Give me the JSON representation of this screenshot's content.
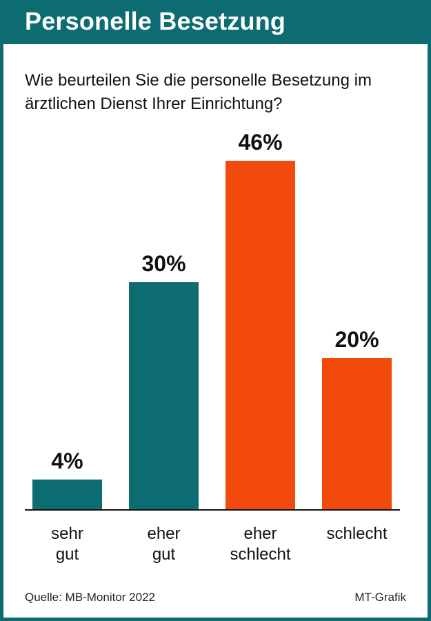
{
  "header": {
    "title": "Personelle Besetzung"
  },
  "question": "Wie beurteilen Sie die personelle Besetzung im ärztlichen Dienst Ihrer Einrichtung?",
  "footer": {
    "source": "Quelle: MB-Monitor 2022",
    "credit": "MT-Grafik"
  },
  "colors": {
    "positive": "#0d6b72",
    "negative": "#f24a0c",
    "header": "#0d6b72"
  },
  "chart_data": {
    "type": "bar",
    "categories": [
      [
        "sehr",
        "gut"
      ],
      [
        "eher",
        "gut"
      ],
      [
        "eher",
        "schlecht"
      ],
      [
        "schlecht"
      ]
    ],
    "values": [
      4,
      30,
      46,
      20
    ],
    "value_labels": [
      "4%",
      "30%",
      "46%",
      "20%"
    ],
    "bar_colors": [
      "#0d6b72",
      "#0d6b72",
      "#f24a0c",
      "#f24a0c"
    ],
    "ylim": [
      0,
      50
    ],
    "grid": false,
    "title": "",
    "xlabel": "",
    "ylabel": ""
  }
}
